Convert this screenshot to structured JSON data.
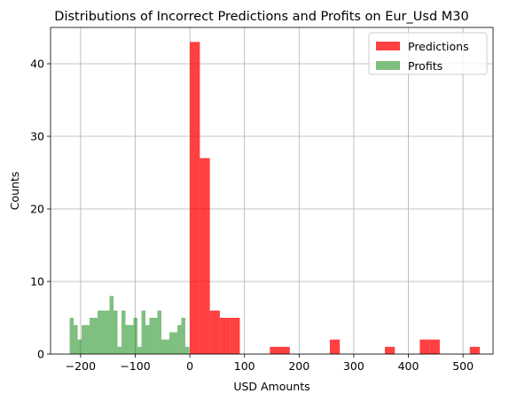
{
  "chart_data": {
    "type": "histogram",
    "title": "Distributions of Incorrect Predictions and Profits on Eur_Usd M30",
    "xlabel": "USD Amounts",
    "ylabel": "Counts",
    "xlim": [
      -255,
      555
    ],
    "ylim": [
      0,
      45
    ],
    "xticks": [
      -200,
      -100,
      0,
      100,
      200,
      300,
      400,
      500
    ],
    "yticks": [
      0,
      10,
      20,
      30,
      40
    ],
    "grid": true,
    "legend_position": "top-right",
    "series": [
      {
        "name": "Predictions",
        "color": "#ff0000",
        "opacity": 0.75,
        "bins": [
          {
            "x0": 0,
            "x1": 18.3,
            "count": 43
          },
          {
            "x0": 18.3,
            "x1": 36.6,
            "count": 27
          },
          {
            "x0": 36.6,
            "x1": 54.9,
            "count": 6
          },
          {
            "x0": 54.9,
            "x1": 73.2,
            "count": 5
          },
          {
            "x0": 73.2,
            "x1": 91.5,
            "count": 5
          },
          {
            "x0": 146.4,
            "x1": 164.7,
            "count": 1
          },
          {
            "x0": 164.7,
            "x1": 183.0,
            "count": 1
          },
          {
            "x0": 256.2,
            "x1": 274.5,
            "count": 2
          },
          {
            "x0": 356.9,
            "x1": 375.2,
            "count": 1
          },
          {
            "x0": 420.9,
            "x1": 439.2,
            "count": 2
          },
          {
            "x0": 439.2,
            "x1": 457.5,
            "count": 2
          },
          {
            "x0": 512.4,
            "x1": 530.7,
            "count": 1
          }
        ]
      },
      {
        "name": "Profits",
        "color": "#008000",
        "opacity": 0.5,
        "bins": [
          {
            "x0": -220,
            "x1": -212.7,
            "count": 5
          },
          {
            "x0": -212.7,
            "x1": -205.4,
            "count": 4
          },
          {
            "x0": -205.4,
            "x1": -198.1,
            "count": 2
          },
          {
            "x0": -198.1,
            "x1": -190.8,
            "count": 4
          },
          {
            "x0": -190.8,
            "x1": -183.5,
            "count": 4
          },
          {
            "x0": -183.5,
            "x1": -176.2,
            "count": 5
          },
          {
            "x0": -176.2,
            "x1": -168.9,
            "count": 5
          },
          {
            "x0": -168.9,
            "x1": -161.6,
            "count": 6
          },
          {
            "x0": -161.6,
            "x1": -154.3,
            "count": 6
          },
          {
            "x0": -154.3,
            "x1": -147.0,
            "count": 6
          },
          {
            "x0": -147.0,
            "x1": -139.7,
            "count": 8
          },
          {
            "x0": -139.7,
            "x1": -132.4,
            "count": 6
          },
          {
            "x0": -132.4,
            "x1": -125.1,
            "count": 1
          },
          {
            "x0": -125.1,
            "x1": -117.8,
            "count": 6
          },
          {
            "x0": -117.8,
            "x1": -110.5,
            "count": 4
          },
          {
            "x0": -110.5,
            "x1": -103.2,
            "count": 4
          },
          {
            "x0": -103.2,
            "x1": -95.9,
            "count": 5
          },
          {
            "x0": -95.9,
            "x1": -88.6,
            "count": 1
          },
          {
            "x0": -88.6,
            "x1": -81.3,
            "count": 6
          },
          {
            "x0": -81.3,
            "x1": -74.0,
            "count": 4
          },
          {
            "x0": -74.0,
            "x1": -66.7,
            "count": 5
          },
          {
            "x0": -66.7,
            "x1": -59.4,
            "count": 5
          },
          {
            "x0": -59.4,
            "x1": -52.1,
            "count": 6
          },
          {
            "x0": -52.1,
            "x1": -44.8,
            "count": 2
          },
          {
            "x0": -44.8,
            "x1": -37.5,
            "count": 2
          },
          {
            "x0": -37.5,
            "x1": -30.2,
            "count": 3
          },
          {
            "x0": -30.2,
            "x1": -22.9,
            "count": 3
          },
          {
            "x0": -22.9,
            "x1": -15.6,
            "count": 4
          },
          {
            "x0": -15.6,
            "x1": -8.3,
            "count": 5
          },
          {
            "x0": -8.3,
            "x1": -1.0,
            "count": 1
          }
        ]
      }
    ]
  }
}
